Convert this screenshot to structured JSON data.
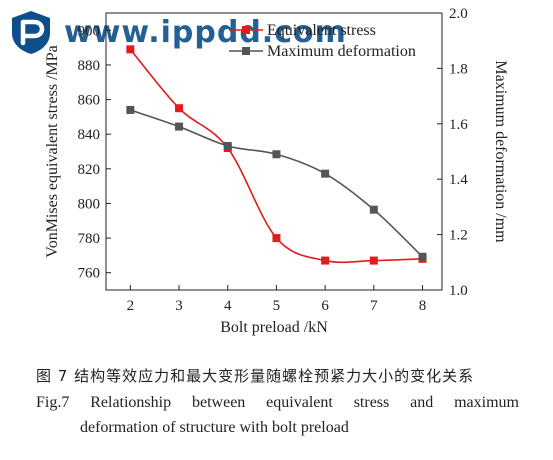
{
  "watermark": {
    "text": "www.ippdd.com",
    "logo_icon": "ippdd-logo-icon",
    "color": "#0e4f8a"
  },
  "chart_data": {
    "type": "line",
    "x": [
      2,
      3,
      4,
      5,
      6,
      7,
      8
    ],
    "xlabel": "Bolt preload /kN",
    "xlim": [
      1.5,
      8.4
    ],
    "x_ticks": [
      "2",
      "3",
      "4",
      "5",
      "6",
      "7",
      "8"
    ],
    "left_axis": {
      "label": "VonMises equivalent stress /MPa",
      "lim": [
        750,
        910
      ],
      "ticks": [
        "760",
        "780",
        "800",
        "820",
        "840",
        "860",
        "880",
        "900"
      ]
    },
    "right_axis": {
      "label": "Maximum deformation /mm",
      "lim": [
        1.0,
        2.0
      ],
      "ticks": [
        "1.0",
        "1.2",
        "1.4",
        "1.6",
        "1.8",
        "2.0"
      ]
    },
    "series": [
      {
        "name": "Equivalent stress",
        "axis": "left",
        "color": "#e41a1c",
        "marker": "square",
        "values": [
          889,
          855,
          832,
          780,
          767,
          767,
          768
        ]
      },
      {
        "name": "Maximum deformation",
        "axis": "right",
        "color": "#555555",
        "marker": "square",
        "values": [
          1.65,
          1.59,
          1.52,
          1.49,
          1.42,
          1.29,
          1.12
        ]
      }
    ],
    "legend_position": "top-right",
    "grid": false
  },
  "caption": {
    "cn": "图 7   结构等效应力和最大变形量随螺栓预紧力大小的变化关系",
    "en_line1": "Fig.7  Relationship  between  equivalent  stress  and  maximum",
    "en_line2": "deformation of structure with bolt preload"
  }
}
